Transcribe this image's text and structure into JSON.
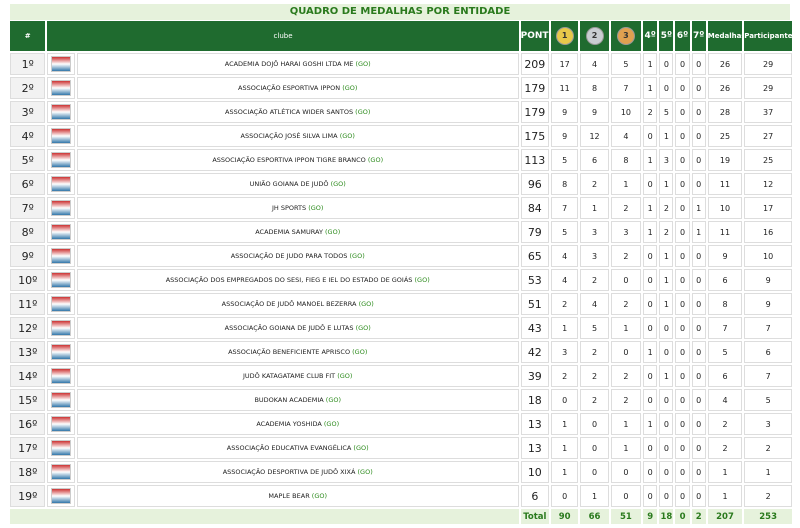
{
  "title": "QUADRO DE MEDALHAS POR ENTIDADE",
  "table": {
    "headers": {
      "rank": "#",
      "club": "clube",
      "points": "PONTOS",
      "medals": [
        "1",
        "2",
        "3"
      ],
      "places": [
        "4º",
        "5º",
        "6º",
        "7º"
      ],
      "total_medals": "Medalhas",
      "participants": "Participantes"
    },
    "rows": [
      [
        "1º",
        {
          "name": "ACADEMIA DOJÔ HARAI GOSHI LTDA ME",
          "state": "(GO)"
        },
        209,
        17,
        4,
        5,
        1,
        0,
        0,
        0,
        26,
        29
      ],
      [
        "2º",
        {
          "name": "ASSOCIAÇÃO ESPORTIVA IPPON",
          "state": "(GO)"
        },
        179,
        11,
        8,
        7,
        1,
        0,
        0,
        0,
        26,
        29
      ],
      [
        "3º",
        {
          "name": "ASSOCIAÇÃO ATLÉTICA WIDER SANTOS",
          "state": "(GO)"
        },
        179,
        9,
        9,
        10,
        2,
        5,
        0,
        0,
        28,
        37
      ],
      [
        "4º",
        {
          "name": "ASSOCIAÇÃO JOSÉ SILVA LIMA",
          "state": "(GO)"
        },
        175,
        9,
        12,
        4,
        0,
        1,
        0,
        0,
        25,
        27
      ],
      [
        "5º",
        {
          "name": "ASSOCIAÇÃO ESPORTIVA IPPON TIGRE BRANCO",
          "state": "(GO)"
        },
        113,
        5,
        6,
        8,
        1,
        3,
        0,
        0,
        19,
        25
      ],
      [
        "6º",
        {
          "name": "UNIÃO GOIANA DE JUDÔ",
          "state": "(GO)"
        },
        96,
        8,
        2,
        1,
        0,
        1,
        0,
        0,
        11,
        12
      ],
      [
        "7º",
        {
          "name": "JH SPORTS",
          "state": "(GO)"
        },
        84,
        7,
        1,
        2,
        1,
        2,
        0,
        1,
        10,
        17
      ],
      [
        "8º",
        {
          "name": "ACADEMIA SAMURAY",
          "state": "(GO)"
        },
        79,
        5,
        3,
        3,
        1,
        2,
        0,
        1,
        11,
        16
      ],
      [
        "9º",
        {
          "name": "ASSOCIAÇÃO DE JUDO PARA TODOS",
          "state": "(GO)"
        },
        65,
        4,
        3,
        2,
        0,
        1,
        0,
        0,
        9,
        10
      ],
      [
        "10º",
        {
          "name": "ASSOCIAÇÃO DOS EMPREGADOS DO SESI, FIEG E IEL DO ESTADO DE GOIÁS",
          "state": "(GO)"
        },
        53,
        4,
        2,
        0,
        0,
        1,
        0,
        0,
        6,
        9
      ],
      [
        "11º",
        {
          "name": "ASSOCIAÇÃO DE JUDÔ MANOEL BEZERRA",
          "state": "(GO)"
        },
        51,
        2,
        4,
        2,
        0,
        1,
        0,
        0,
        8,
        9
      ],
      [
        "12º",
        {
          "name": "ASSOCIAÇÃO GOIANA DE JUDÔ E LUTAS",
          "state": "(GO)"
        },
        43,
        1,
        5,
        1,
        0,
        0,
        0,
        0,
        7,
        7
      ],
      [
        "13º",
        {
          "name": "ASSOCIAÇÃO BENEFICIENTE APRISCO",
          "state": "(GO)"
        },
        42,
        3,
        2,
        0,
        1,
        0,
        0,
        0,
        5,
        6
      ],
      [
        "14º",
        {
          "name": "JUDÔ KATAGATAME CLUB FIT",
          "state": "(GO)"
        },
        39,
        2,
        2,
        2,
        0,
        1,
        0,
        0,
        6,
        7
      ],
      [
        "15º",
        {
          "name": "BUDOKAN ACADEMIA",
          "state": "(GO)"
        },
        18,
        0,
        2,
        2,
        0,
        0,
        0,
        0,
        4,
        5
      ],
      [
        "16º",
        {
          "name": "ACADEMIA YOSHIDA",
          "state": "(GO)"
        },
        13,
        1,
        0,
        1,
        1,
        0,
        0,
        0,
        2,
        3
      ],
      [
        "17º",
        {
          "name": "ASSOCIAÇÃO EDUCATIVA EVANGÉLICA",
          "state": "(GO)"
        },
        13,
        1,
        0,
        1,
        0,
        0,
        0,
        0,
        2,
        2
      ],
      [
        "18º",
        {
          "name": "ASSOCIAÇÃO DESPORTIVA DE JUDÔ XIXÁ",
          "state": "(GO)"
        },
        10,
        1,
        0,
        0,
        0,
        0,
        0,
        0,
        1,
        1
      ],
      [
        "19º",
        {
          "name": "MAPLE BEAR",
          "state": "(GO)"
        },
        6,
        0,
        1,
        0,
        0,
        0,
        0,
        0,
        1,
        2
      ]
    ],
    "total": {
      "label": "Total",
      "values": [
        90,
        66,
        51,
        9,
        18,
        0,
        2,
        207,
        253
      ]
    }
  }
}
